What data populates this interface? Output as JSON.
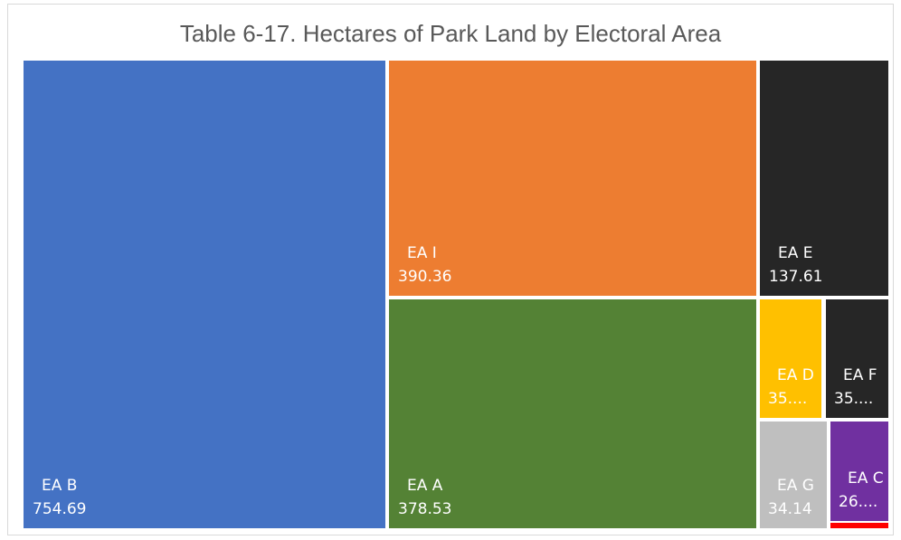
{
  "chart_data": {
    "type": "treemap",
    "title": "Table 6-17. Hectares of Park Land by Electoral Area",
    "items": [
      {
        "name": "EA B",
        "value": 754.69,
        "value_label": "754.69",
        "color": "#4472C4"
      },
      {
        "name": "EA I",
        "value": 390.36,
        "value_label": "390.36",
        "color": "#ED7D31"
      },
      {
        "name": "EA A",
        "value": 378.53,
        "value_label": "378.53",
        "color": "#548235"
      },
      {
        "name": "EA E",
        "value": 137.61,
        "value_label": "137.61",
        "color": "#262626"
      },
      {
        "name": "EA D",
        "value": 35.0,
        "value_label": "35....",
        "color": "#FFC000"
      },
      {
        "name": "EA F",
        "value": 35.0,
        "value_label": "35....",
        "color": "#262626"
      },
      {
        "name": "EA G",
        "value": 34.14,
        "value_label": "34.14",
        "color": "#BFBFBF"
      },
      {
        "name": "EA C",
        "value": 26.0,
        "value_label": "26....",
        "color": "#7030A0"
      },
      {
        "name": "",
        "value": 2.0,
        "value_label": "",
        "color": "#FF0000"
      }
    ]
  }
}
